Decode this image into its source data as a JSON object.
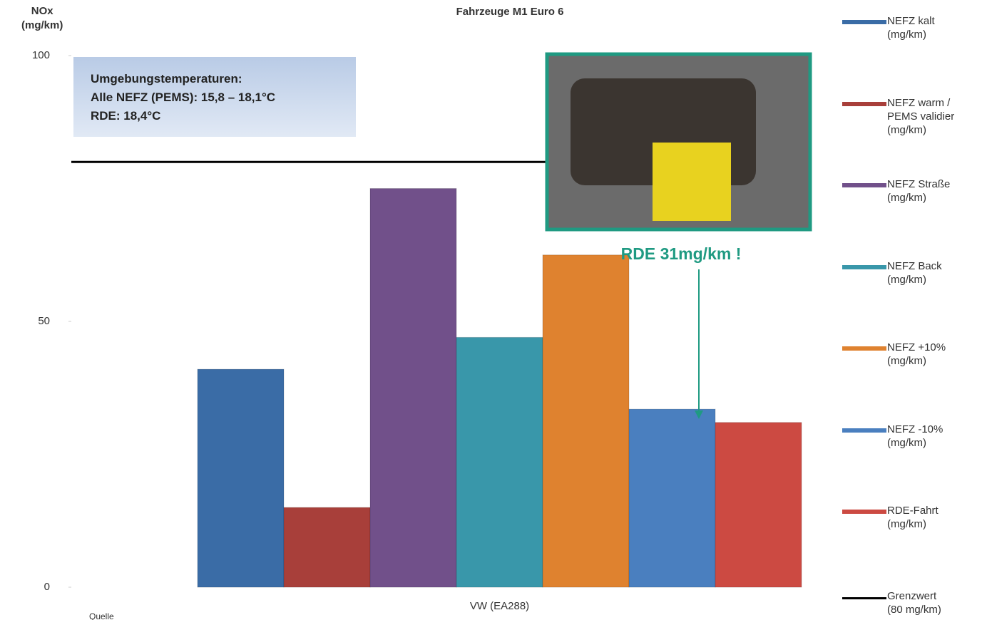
{
  "chart_data": {
    "type": "bar",
    "title": "Fahrzeuge M1 Euro 6",
    "y_label": "NOx\n(mg/km)",
    "categories": [
      "VW (EA288)"
    ],
    "series": [
      {
        "name": "NEFZ kalt\n(mg/km)",
        "color": "#3a6ca6",
        "values": [
          41
        ]
      },
      {
        "name": "NEFZ warm /\nPEMS validier\n(mg/km)",
        "color": "#a83f3a",
        "values": [
          15
        ]
      },
      {
        "name": "NEFZ Straße\n(mg/km)",
        "color": "#71508a",
        "values": [
          75
        ]
      },
      {
        "name": "NEFZ Back\n(mg/km)",
        "color": "#3997aa",
        "values": [
          47
        ]
      },
      {
        "name": "NEFZ +10%\n(mg/km)",
        "color": "#df822f",
        "values": [
          62.5
        ]
      },
      {
        "name": "NEFZ -10%\n(mg/km)",
        "color": "#4a7fbf",
        "values": [
          33.5
        ]
      },
      {
        "name": "RDE-Fahrt\n(mg/km)",
        "color": "#cc4a42",
        "values": [
          31
        ]
      }
    ],
    "reference_line": {
      "name": "Grenzwert\n(80 mg/km)",
      "value": 80,
      "color": "#000000"
    },
    "ylim": [
      0,
      100
    ],
    "yticks": [
      0,
      50,
      100
    ],
    "legend": "right",
    "info_box": [
      "Umgebungstemperaturen:",
      "Alle NEFZ (PEMS): 15,8 – 18,1°C",
      "RDE: 18,4°C"
    ],
    "annotation": "RDE 31mg/km !",
    "source": "Quelle"
  }
}
